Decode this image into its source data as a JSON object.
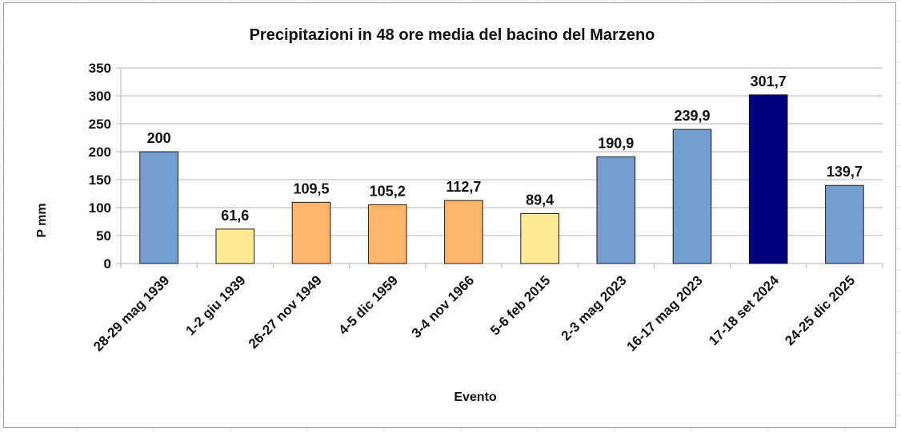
{
  "chart_data": {
    "type": "bar",
    "title": "Precipitazioni in 48 ore media del bacino del Marzeno",
    "xlabel": "Evento",
    "ylabel": "P mm",
    "ylim": [
      0,
      350
    ],
    "yticks": [
      0,
      50,
      100,
      150,
      200,
      250,
      300,
      350
    ],
    "grid": true,
    "legend": "none",
    "categories": [
      "28-29 mag 1939",
      "1-2 giu 1939",
      "26-27 nov 1949",
      "4-5 dic 1959",
      "3-4 nov 1966",
      "5-6 feb 2015",
      "2-3 mag 2023",
      "16-17 mag 2023",
      "17-18 set 2024",
      "24-25 dic 2025"
    ],
    "values": [
      200,
      61.6,
      109.5,
      105.2,
      112.7,
      89.4,
      190.9,
      239.9,
      301.7,
      139.7
    ],
    "data_labels": [
      "200",
      "61,6",
      "109,5",
      "105,2",
      "112,7",
      "89,4",
      "190,9",
      "239,9",
      "301,7",
      "139,7"
    ],
    "colors": [
      "#729fcf",
      "#ffe994",
      "#ffb66c",
      "#ffb66c",
      "#ffb66c",
      "#ffe994",
      "#729fcf",
      "#729fcf",
      "#000080",
      "#729fcf"
    ],
    "gridline_color": "#b3b3b3",
    "bar_outline_color": "#1a1a1a"
  }
}
